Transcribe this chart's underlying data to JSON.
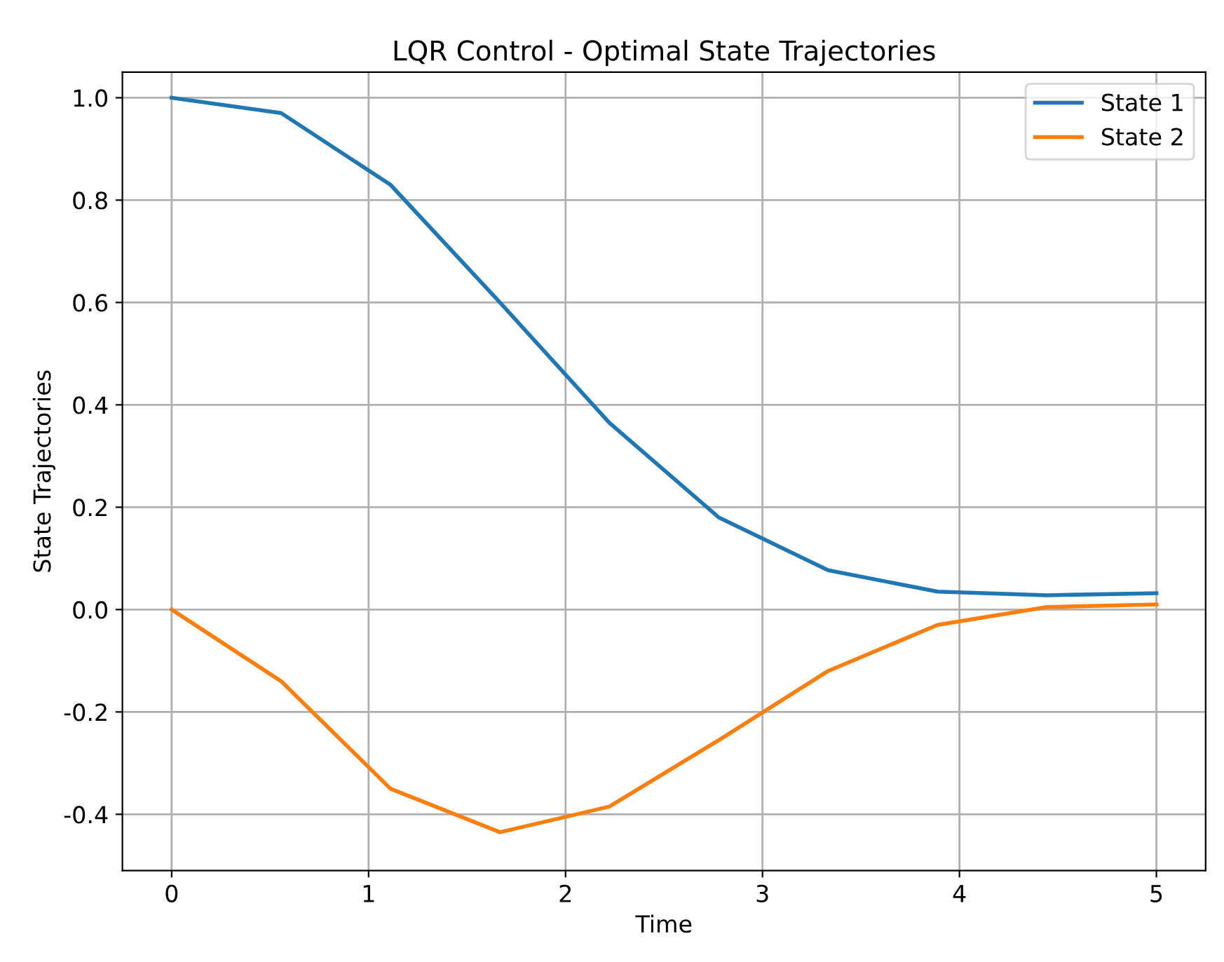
{
  "chart_data": {
    "type": "line",
    "title": "LQR Control - Optimal State Trajectories",
    "xlabel": "Time",
    "ylabel": "State Trajectories",
    "x": [
      0,
      0.556,
      1.111,
      1.667,
      2.222,
      2.778,
      3.333,
      3.889,
      4.444,
      5
    ],
    "series": [
      {
        "name": "State 1",
        "color": "#1f77b4",
        "values": [
          1.0,
          0.97,
          0.83,
          0.6,
          0.365,
          0.18,
          0.077,
          0.035,
          0.028,
          0.032
        ]
      },
      {
        "name": "State 2",
        "color": "#ff7f0e",
        "values": [
          0.0,
          -0.14,
          -0.35,
          -0.435,
          -0.385,
          -0.255,
          -0.12,
          -0.03,
          0.005,
          0.01
        ]
      }
    ],
    "xlim": [
      -0.25,
      5.25
    ],
    "ylim": [
      -0.51,
      1.05
    ],
    "xticks": [
      0,
      1,
      2,
      3,
      4,
      5
    ],
    "yticks": [
      -0.4,
      -0.2,
      {
        "value": 0,
        "label": "0.0"
      },
      0.2,
      0.4,
      0.6,
      0.8,
      {
        "value": 1,
        "label": "1.0"
      }
    ],
    "grid": true,
    "legend": "top right"
  }
}
